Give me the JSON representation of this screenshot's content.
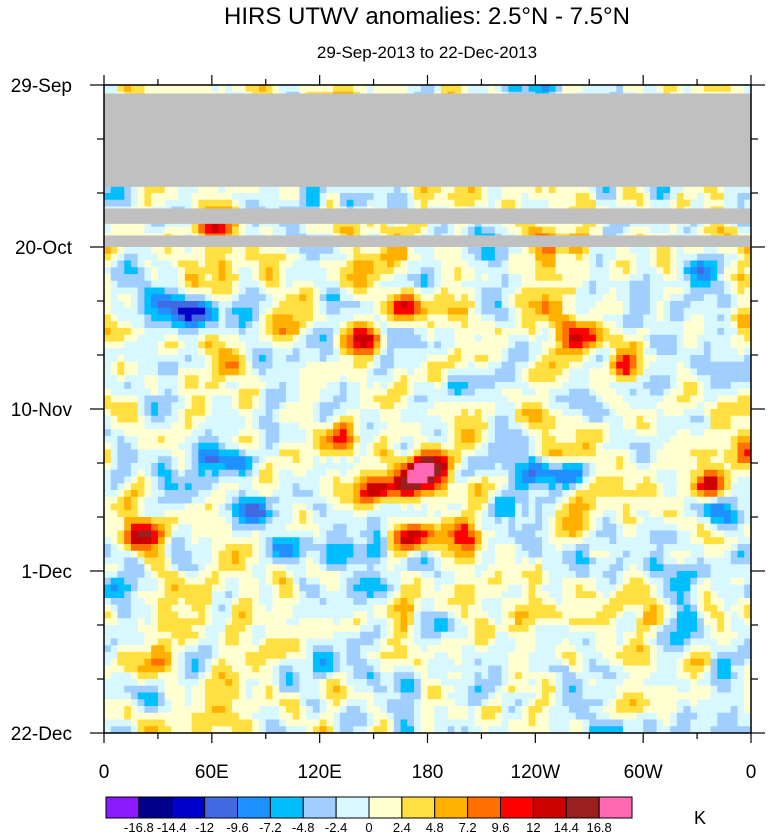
{
  "chart_data": {
    "type": "heatmap",
    "title": "HIRS UTWV anomalies: 2.5°N - 7.5°N",
    "subtitle": "29-Sep-2013 to 22-Dec-2013",
    "xlabel": "",
    "ylabel": "",
    "x_ticks": [
      "0",
      "60E",
      "120E",
      "180",
      "120W",
      "60W",
      "0"
    ],
    "y_ticks": [
      "29-Sep",
      "20-Oct",
      "10-Nov",
      "1-Dec",
      "22-Dec"
    ],
    "xlim_deg": [
      0,
      360
    ],
    "time_range_days": [
      0,
      84
    ],
    "missing_color": "#c0c0c0",
    "colorbar": {
      "unit": "K",
      "levels": [
        "-16.8",
        "-14.4",
        "-12",
        "-9.6",
        "-7.2",
        "-4.8",
        "-2.4",
        "0",
        "2.4",
        "4.8",
        "7.2",
        "9.6",
        "12",
        "14.4",
        "16.8"
      ],
      "colors": [
        "#8c1aff",
        "#00008b",
        "#0000cd",
        "#4169e1",
        "#1e90ff",
        "#00bfff",
        "#a0cfff",
        "#d8f8ff",
        "#ffffd0",
        "#ffe040",
        "#ffb000",
        "#ff7000",
        "#ff0000",
        "#cd0000",
        "#9a2020",
        "#ff69b4"
      ]
    },
    "missing_bands_days": [
      [
        1.1,
        13.2
      ],
      [
        16.0,
        18.0
      ],
      [
        19.5,
        21.0
      ]
    ],
    "anomaly_features": [
      {
        "lon": 45,
        "day": 29,
        "value": -12
      },
      {
        "lon": 30,
        "day": 27,
        "value": -9.6
      },
      {
        "lon": 140,
        "day": 33,
        "value": 9.6
      },
      {
        "lon": 165,
        "day": 28,
        "value": 7.2
      },
      {
        "lon": 265,
        "day": 32,
        "value": 12
      },
      {
        "lon": 290,
        "day": 36,
        "value": 12
      },
      {
        "lon": 245,
        "day": 27,
        "value": 7.2
      },
      {
        "lon": 180,
        "day": 49,
        "value": 16.8
      },
      {
        "lon": 170,
        "day": 51,
        "value": 14.4
      },
      {
        "lon": 130,
        "day": 46,
        "value": 12
      },
      {
        "lon": 150,
        "day": 52,
        "value": 9.6
      },
      {
        "lon": 20,
        "day": 58,
        "value": 12
      },
      {
        "lon": 340,
        "day": 51,
        "value": 14.4
      },
      {
        "lon": 355,
        "day": 46,
        "value": 9.6
      },
      {
        "lon": 170,
        "day": 58,
        "value": 12
      },
      {
        "lon": 200,
        "day": 58,
        "value": 9.6
      },
      {
        "lon": 60,
        "day": 48,
        "value": -9.6
      },
      {
        "lon": 80,
        "day": 55,
        "value": -7.2
      },
      {
        "lon": 230,
        "day": 50,
        "value": -7.2
      },
      {
        "lon": 250,
        "day": 50,
        "value": -9.6
      },
      {
        "lon": 345,
        "day": 55,
        "value": -9.6
      },
      {
        "lon": 210,
        "day": 22,
        "value": -7.2
      },
      {
        "lon": 330,
        "day": 24,
        "value": -7.2
      },
      {
        "lon": 60,
        "day": 18,
        "value": 9.6
      },
      {
        "lon": 245,
        "day": 19,
        "value": 7.2
      }
    ]
  }
}
